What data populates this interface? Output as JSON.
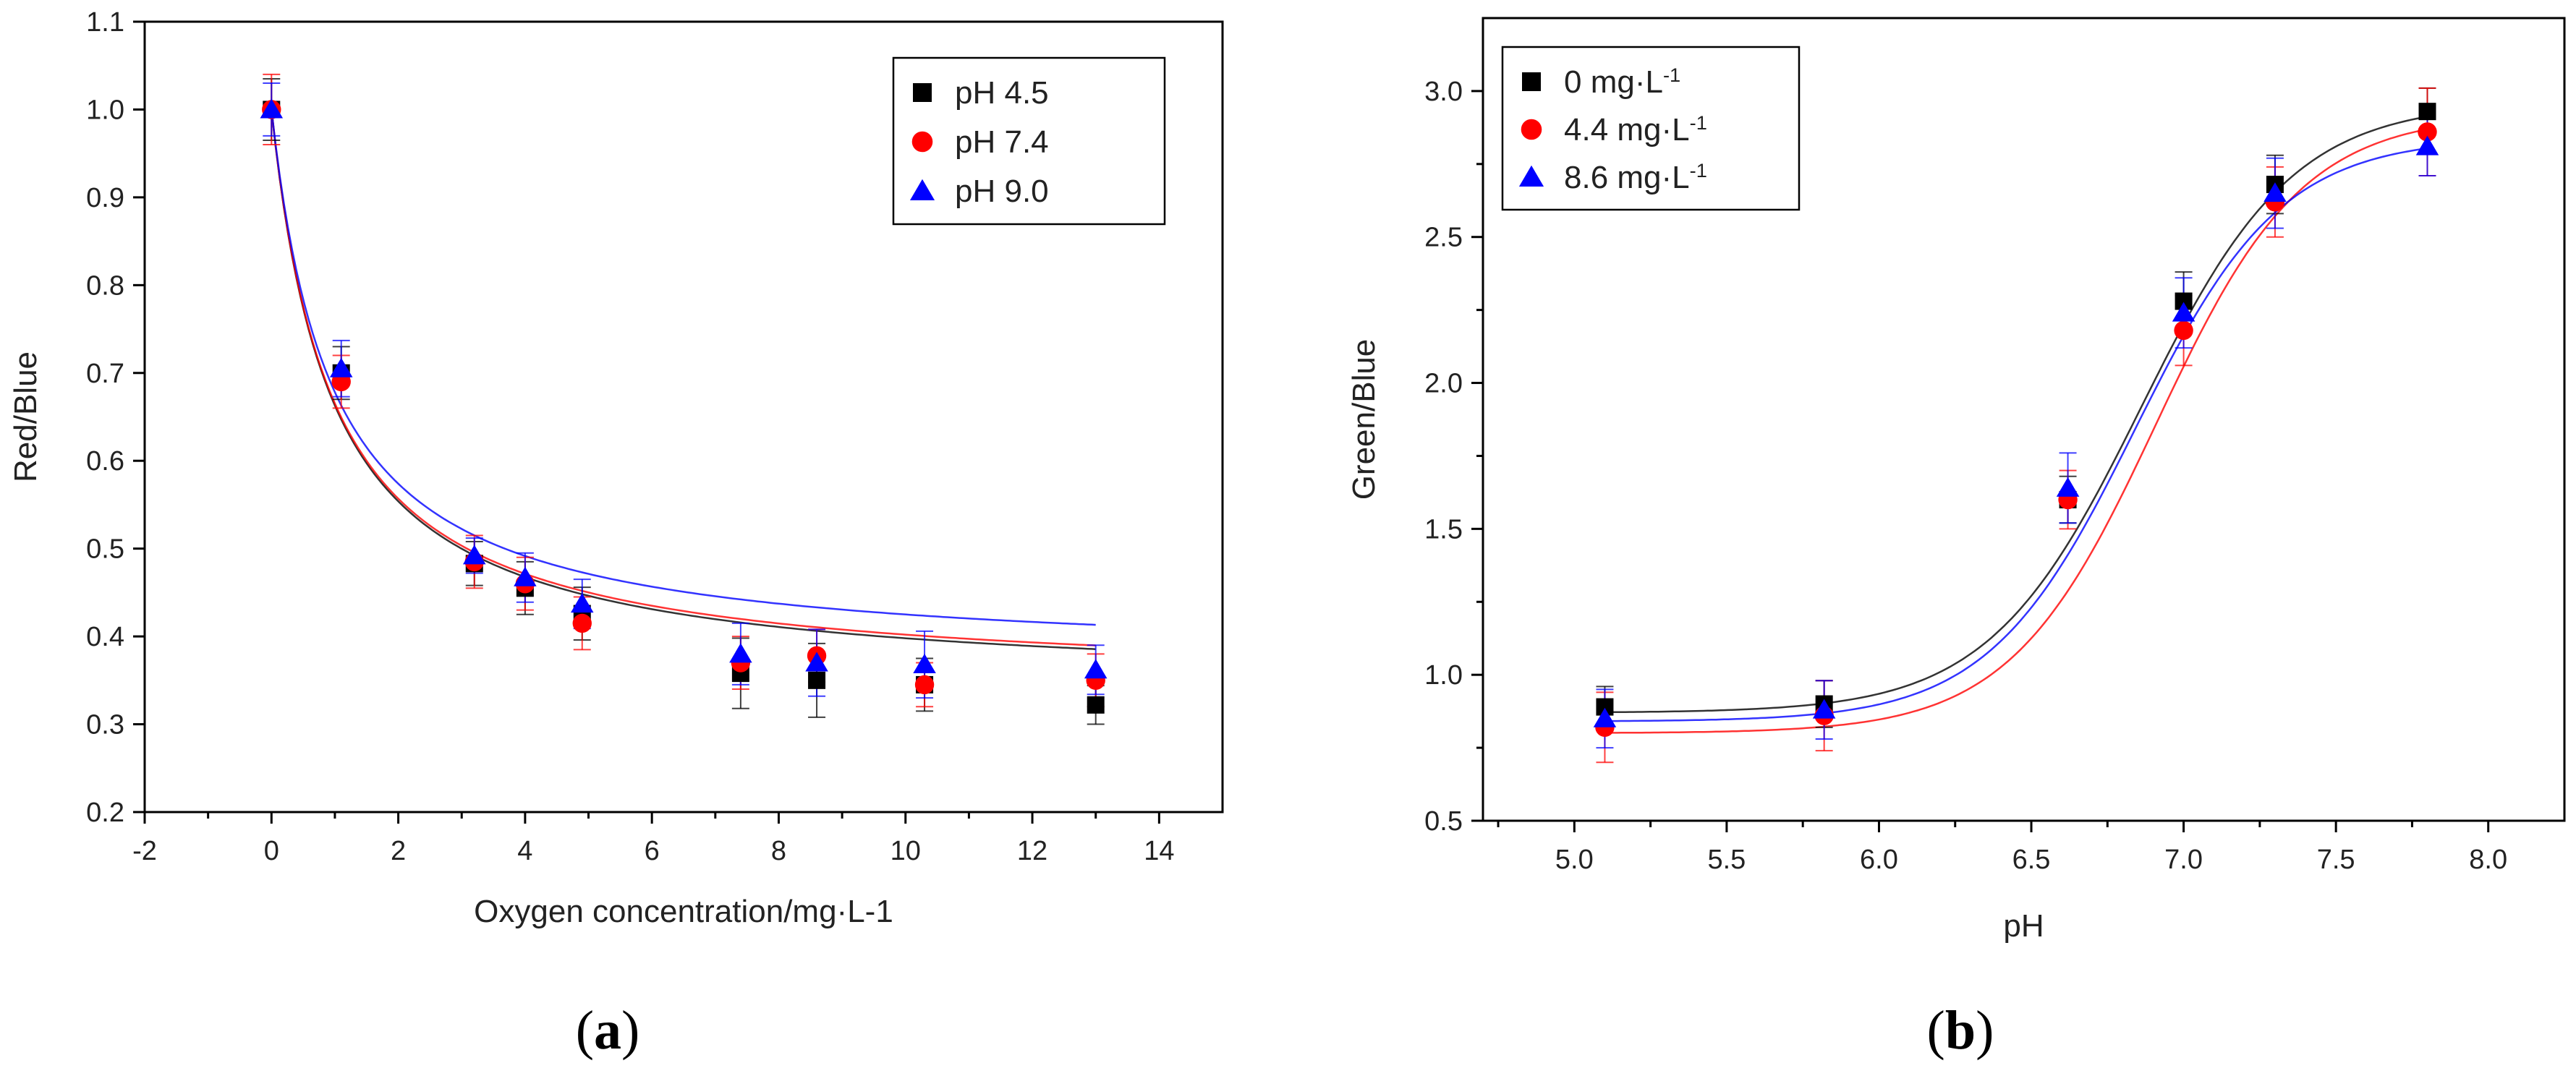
{
  "panels": [
    {
      "label": "a",
      "chart_data": {
        "type": "scatter",
        "title": "",
        "xlabel": "Oxygen concentration/mg·L-1",
        "ylabel": "Red/Blue",
        "xlim": [
          -2,
          15
        ],
        "ylim": [
          0.2,
          1.1
        ],
        "xticks": [
          -2,
          0,
          2,
          4,
          6,
          8,
          10,
          12,
          14
        ],
        "xtick_labels": [
          "-2",
          "0",
          "2",
          "4",
          "6",
          "8",
          "10",
          "12",
          "14"
        ],
        "yticks": [
          0.2,
          0.3,
          0.4,
          0.5,
          0.6,
          0.7,
          0.8,
          0.9,
          1.0,
          1.1
        ],
        "ytick_labels": [
          "0.2",
          "0.3",
          "0.4",
          "0.5",
          "0.6",
          "0.7",
          "0.8",
          "0.9",
          "1.0",
          "1.1"
        ],
        "legend_position": "top-right",
        "grid": false,
        "fit": "stern-volmer",
        "series": [
          {
            "name": "pH 4.5",
            "color": "#000000",
            "marker": "square",
            "x": [
              0,
              1.1,
              3.2,
              4.0,
              4.9,
              7.4,
              8.6,
              10.3,
              13.0
            ],
            "y": [
              1.0,
              0.7,
              0.483,
              0.455,
              0.426,
              0.358,
              0.35,
              0.345,
              0.322
            ],
            "err": [
              0.035,
              0.03,
              0.025,
              0.03,
              0.03,
              0.04,
              0.042,
              0.03,
              0.022
            ],
            "fit_k0": 1.0,
            "fit_a": 0.733,
            "fit_b": 0.9
          },
          {
            "name": "pH 7.4",
            "color": "#ff0000",
            "marker": "circle",
            "x": [
              0,
              1.1,
              3.2,
              4.0,
              4.9,
              7.4,
              8.6,
              10.3,
              13.0
            ],
            "y": [
              1.0,
              0.69,
              0.485,
              0.46,
              0.415,
              0.37,
              0.378,
              0.345,
              0.35
            ],
            "err": [
              0.04,
              0.03,
              0.03,
              0.03,
              0.03,
              0.03,
              0.03,
              0.025,
              0.03
            ],
            "fit_k0": 1.0,
            "fit_a": 0.728,
            "fit_b": 0.9
          },
          {
            "name": "pH 9.0",
            "color": "#0000ff",
            "marker": "triangle",
            "x": [
              0,
              1.1,
              3.2,
              4.0,
              4.9,
              7.4,
              8.6,
              10.3,
              13.0
            ],
            "y": [
              1.0,
              0.705,
              0.492,
              0.467,
              0.437,
              0.38,
              0.37,
              0.368,
              0.362
            ],
            "err": [
              0.03,
              0.032,
              0.02,
              0.028,
              0.028,
              0.035,
              0.038,
              0.038,
              0.028
            ],
            "fit_k0": 1.0,
            "fit_a": 0.7,
            "fit_b": 0.9
          }
        ]
      }
    },
    {
      "label": "b",
      "chart_data": {
        "type": "scatter",
        "title": "",
        "xlabel": "pH",
        "ylabel": "Green/Blue",
        "xlim": [
          4.7,
          8.25
        ],
        "ylim": [
          0.5,
          3.25
        ],
        "xticks": [
          5.0,
          5.5,
          6.0,
          6.5,
          7.0,
          7.5,
          8.0
        ],
        "xtick_labels": [
          "5.0",
          "5.5",
          "6.0",
          "6.5",
          "7.0",
          "7.5",
          "8.0"
        ],
        "yticks": [
          0.5,
          1.0,
          1.5,
          2.0,
          2.5,
          3.0
        ],
        "ytick_labels": [
          "0.5",
          "1.0",
          "1.5",
          "2.0",
          "2.5",
          "3.0"
        ],
        "legend_position": "top-left",
        "grid": false,
        "fit": "sigmoid",
        "series": [
          {
            "name": "0    mg·L",
            "sup": "-1",
            "color": "#000000",
            "marker": "square",
            "x": [
              5.1,
              5.82,
              6.62,
              7.0,
              7.3,
              7.8
            ],
            "y": [
              0.89,
              0.9,
              1.6,
              2.28,
              2.68,
              2.93
            ],
            "err": [
              0.07,
              0.08,
              0.08,
              0.1,
              0.1,
              0.08
            ],
            "fit_bottom": 0.87,
            "fit_top": 2.96,
            "fit_x0": 6.86,
            "fit_dx": 0.25
          },
          {
            "name": "4.4 mg·L",
            "sup": "-1",
            "color": "#ff0000",
            "marker": "circle",
            "x": [
              5.1,
              5.82,
              6.62,
              7.0,
              7.3,
              7.8
            ],
            "y": [
              0.82,
              0.86,
              1.6,
              2.18,
              2.62,
              2.86
            ],
            "err": [
              0.12,
              0.12,
              0.1,
              0.12,
              0.12,
              0.15
            ],
            "fit_bottom": 0.8,
            "fit_top": 2.92,
            "fit_x0": 6.91,
            "fit_dx": 0.24
          },
          {
            "name": "8.6 mg·L",
            "sup": "-1",
            "color": "#0000ff",
            "marker": "triangle",
            "x": [
              5.1,
              5.82,
              6.62,
              7.0,
              7.3,
              7.8
            ],
            "y": [
              0.85,
              0.88,
              1.64,
              2.24,
              2.65,
              2.81
            ],
            "err": [
              0.1,
              0.1,
              0.12,
              0.12,
              0.12,
              0.1
            ],
            "fit_bottom": 0.84,
            "fit_top": 2.84,
            "fit_x0": 6.84,
            "fit_dx": 0.24
          }
        ]
      }
    }
  ]
}
